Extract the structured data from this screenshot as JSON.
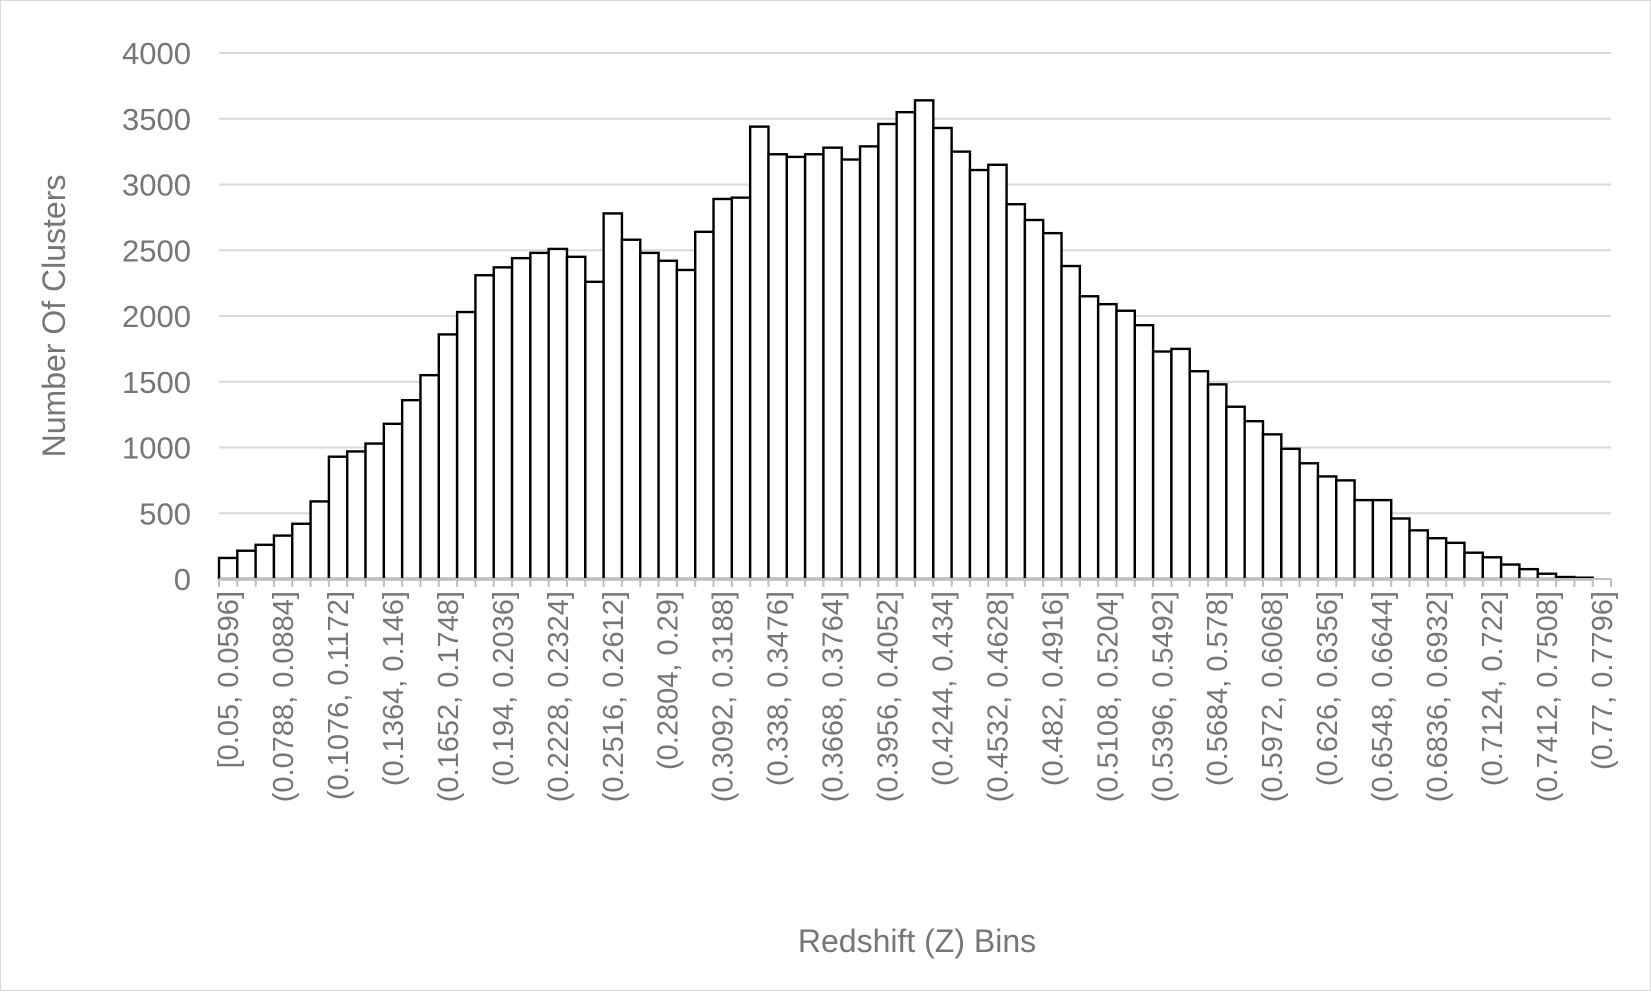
{
  "chart_data": {
    "type": "bar",
    "title": "",
    "xlabel": "Redshift (Z) Bins",
    "ylabel": "Number Of Clusters",
    "ylim": [
      0,
      4000
    ],
    "yticks": [
      0,
      500,
      1000,
      1500,
      2000,
      2500,
      3000,
      3500,
      4000
    ],
    "grid": "horizontal",
    "legend": "none",
    "bar_fill": "#ffffff",
    "bar_edge": "#000000",
    "categories": [
      "[0.05, 0.0596]",
      "(0.0596, 0.0692]",
      "(0.0692, 0.0788]",
      "(0.0788, 0.0884]",
      "(0.0884, 0.098]",
      "(0.098, 0.1076]",
      "(0.1076, 0.1172]",
      "(0.1172, 0.1268]",
      "(0.1268, 0.1364]",
      "(0.1364, 0.146]",
      "(0.146, 0.1556]",
      "(0.1556, 0.1652]",
      "(0.1652, 0.1748]",
      "(0.1748, 0.1844]",
      "(0.1844, 0.194]",
      "(0.194, 0.2036]",
      "(0.2036, 0.2132]",
      "(0.2132, 0.2228]",
      "(0.2228, 0.2324]",
      "(0.2324, 0.242]",
      "(0.242, 0.2516]",
      "(0.2516, 0.2612]",
      "(0.2612, 0.2708]",
      "(0.2708, 0.2804]",
      "(0.2804, 0.29]",
      "(0.29, 0.2996]",
      "(0.2996, 0.3092]",
      "(0.3092, 0.3188]",
      "(0.3188, 0.3284]",
      "(0.3284, 0.338]",
      "(0.338, 0.3476]",
      "(0.3476, 0.3572]",
      "(0.3572, 0.3668]",
      "(0.3668, 0.3764]",
      "(0.3764, 0.386]",
      "(0.386, 0.3956]",
      "(0.3956, 0.4052]",
      "(0.4052, 0.4148]",
      "(0.4148, 0.4244]",
      "(0.4244, 0.434]",
      "(0.434, 0.4436]",
      "(0.4436, 0.4532]",
      "(0.4532, 0.4628]",
      "(0.4628, 0.4724]",
      "(0.4724, 0.482]",
      "(0.482, 0.4916]",
      "(0.4916, 0.5012]",
      "(0.5012, 0.5108]",
      "(0.5108, 0.5204]",
      "(0.5204, 0.53]",
      "(0.53, 0.5396]",
      "(0.5396, 0.5492]",
      "(0.5492, 0.5588]",
      "(0.5588, 0.5684]",
      "(0.5684, 0.578]",
      "(0.578, 0.5876]",
      "(0.5876, 0.5972]",
      "(0.5972, 0.6068]",
      "(0.6068, 0.6164]",
      "(0.6164, 0.626]",
      "(0.626, 0.6356]",
      "(0.6356, 0.6452]",
      "(0.6452, 0.6548]",
      "(0.6548, 0.6644]",
      "(0.6644, 0.674]",
      "(0.674, 0.6836]",
      "(0.6836, 0.6932]",
      "(0.6932, 0.7028]",
      "(0.7028, 0.7124]",
      "(0.7124, 0.722]",
      "(0.722, 0.7316]",
      "(0.7316, 0.7412]",
      "(0.7412, 0.7508]",
      "(0.7508, 0.7604]",
      "(0.7604, 0.77]",
      "(0.77, 0.7796]"
    ],
    "shown_tick_labels": [
      "[0.05, 0.0596]",
      "(0.0788, 0.0884]",
      "(0.1076, 0.1172]",
      "(0.1364, 0.146]",
      "(0.1652, 0.1748]",
      "(0.194, 0.2036]",
      "(0.2228, 0.2324]",
      "(0.2516, 0.2612]",
      "(0.2804, 0.29]",
      "(0.3092, 0.3188]",
      "(0.338, 0.3476]",
      "(0.3668, 0.3764]",
      "(0.3956, 0.4052]",
      "(0.4244, 0.434]",
      "(0.4532, 0.4628]",
      "(0.482, 0.4916]",
      "(0.5108, 0.5204]",
      "(0.5396, 0.5492]",
      "(0.5684, 0.578]",
      "(0.5972, 0.6068]",
      "(0.626, 0.6356]",
      "(0.6548, 0.6644]",
      "(0.6836, 0.6932]",
      "(0.7124, 0.722]",
      "(0.7412, 0.7508]",
      "(0.77, 0.7796]"
    ],
    "values": [
      160,
      215,
      260,
      330,
      420,
      590,
      930,
      970,
      1030,
      1180,
      1360,
      1550,
      1860,
      2030,
      2310,
      2370,
      2440,
      2480,
      2510,
      2450,
      2260,
      2780,
      2580,
      2480,
      2420,
      2350,
      2640,
      2890,
      2900,
      3440,
      3230,
      3210,
      3230,
      3280,
      3190,
      3290,
      3460,
      3550,
      3640,
      3430,
      3250,
      3110,
      3150,
      2850,
      2730,
      2630,
      2380,
      2150,
      2090,
      2040,
      1930,
      1730,
      1750,
      1580,
      1480,
      1310,
      1200,
      1100,
      990,
      880,
      780,
      750,
      600,
      600,
      460,
      370,
      310,
      275,
      200,
      165,
      110,
      75,
      40,
      15,
      10,
      0
    ]
  }
}
